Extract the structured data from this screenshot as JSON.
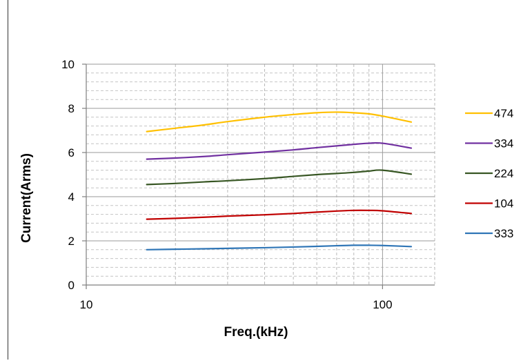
{
  "chart_data": {
    "type": "line",
    "xlabel": "Freq.(kHz)",
    "ylabel": "Current(Arms)",
    "x_scale": "log",
    "xlim": [
      10,
      150
    ],
    "ylim": [
      0,
      10
    ],
    "x_ticks": [
      10,
      100
    ],
    "y_ticks": [
      0,
      2,
      4,
      6,
      8,
      10
    ],
    "grid": true,
    "legend_position": "right",
    "x": [
      16,
      20,
      25,
      30,
      40,
      50,
      60,
      70,
      80,
      90,
      100,
      125
    ],
    "series": [
      {
        "name": "474",
        "color": "#FFC000",
        "values": [
          6.95,
          7.1,
          7.25,
          7.4,
          7.6,
          7.72,
          7.8,
          7.83,
          7.8,
          7.75,
          7.65,
          7.38
        ]
      },
      {
        "name": "334",
        "color": "#7030A0",
        "values": [
          5.7,
          5.75,
          5.82,
          5.9,
          6.02,
          6.12,
          6.22,
          6.3,
          6.37,
          6.42,
          6.42,
          6.2
        ]
      },
      {
        "name": "224",
        "color": "#375623",
        "values": [
          4.55,
          4.6,
          4.67,
          4.72,
          4.82,
          4.92,
          5.0,
          5.05,
          5.1,
          5.16,
          5.2,
          5.02
        ]
      },
      {
        "name": "104",
        "color": "#C00000",
        "values": [
          2.98,
          3.02,
          3.07,
          3.12,
          3.18,
          3.24,
          3.3,
          3.35,
          3.38,
          3.38,
          3.36,
          3.24
        ]
      },
      {
        "name": "333",
        "color": "#2E75B6",
        "values": [
          1.6,
          1.62,
          1.64,
          1.66,
          1.69,
          1.72,
          1.75,
          1.78,
          1.8,
          1.8,
          1.79,
          1.74
        ]
      }
    ]
  }
}
